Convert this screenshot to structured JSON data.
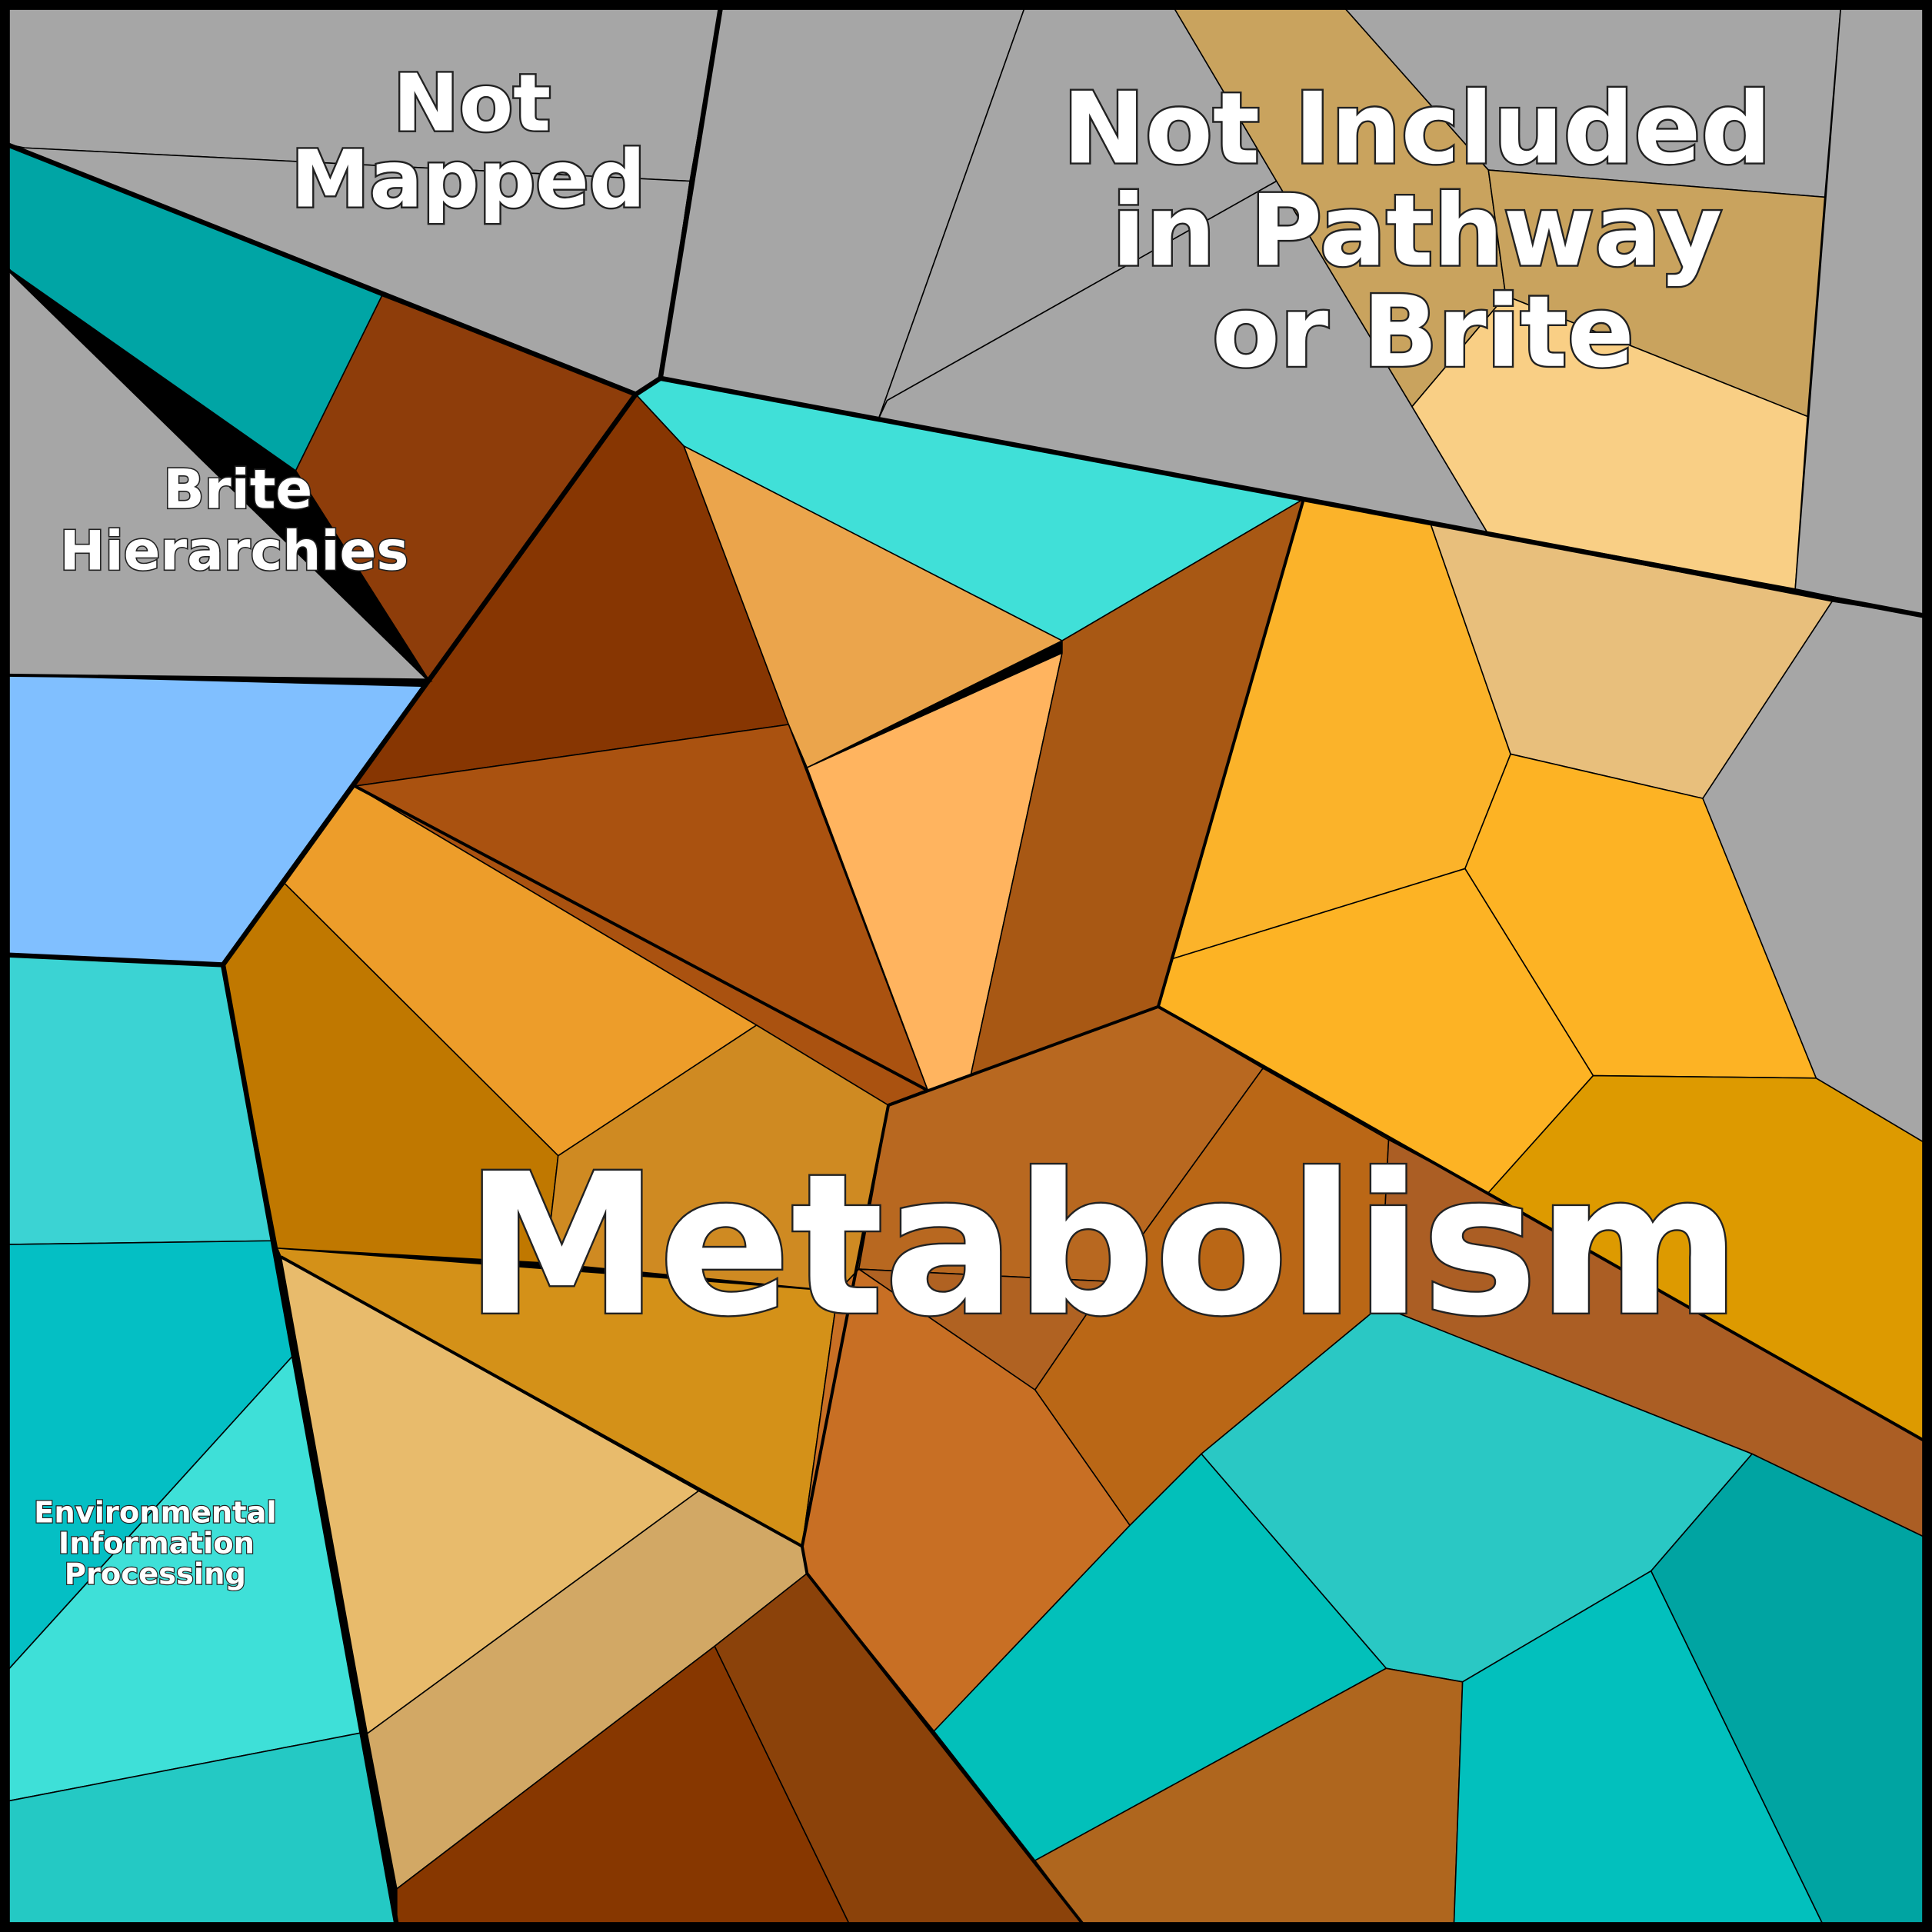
{
  "labels": [
    {
      "lines": [
        "Not",
        "Mapped"
      ]
    },
    {
      "lines": [
        "Not Included",
        "in Pathway",
        "or Brite"
      ]
    },
    {
      "lines": [
        "Brite",
        "Hierarchies"
      ]
    },
    {
      "lines": [
        "Environmental",
        "Information",
        "Processing"
      ]
    },
    {
      "lines": [
        "Metabolism"
      ]
    }
  ]
}
